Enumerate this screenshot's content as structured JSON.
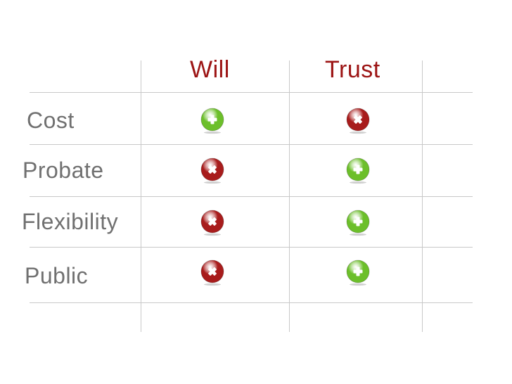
{
  "table": {
    "columns": [
      "Will",
      "Trust"
    ],
    "rows": [
      {
        "label": "Cost",
        "will": "plus",
        "trust": "cross"
      },
      {
        "label": "Probate",
        "will": "cross",
        "trust": "plus"
      },
      {
        "label": "Flexibility",
        "will": "cross",
        "trust": "plus"
      },
      {
        "label": "Public",
        "will": "cross",
        "trust": "plus"
      }
    ]
  },
  "icons": {
    "plus": {
      "name": "plus-circle-icon",
      "color": "#6cbf2a"
    },
    "cross": {
      "name": "cross-circle-icon",
      "color": "#a81c1c"
    }
  },
  "colors": {
    "header_text": "#9c1414",
    "label_text": "#707070",
    "grid": "#c8c8c8"
  }
}
